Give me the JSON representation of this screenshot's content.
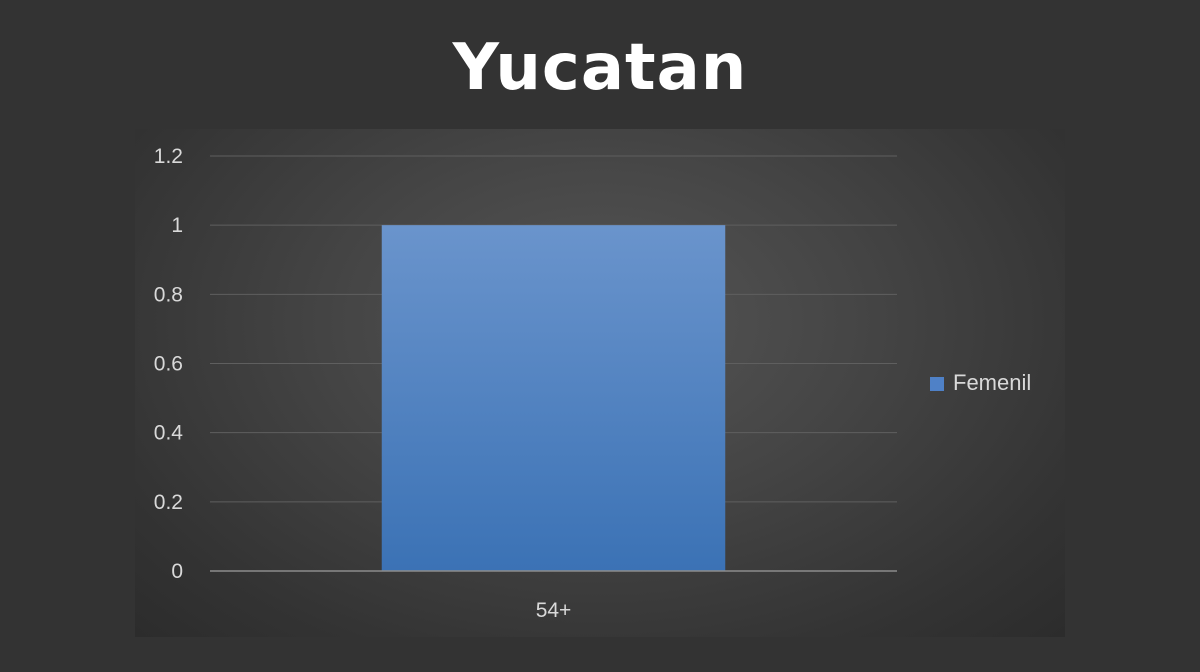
{
  "chart_data": {
    "type": "bar",
    "title": "Yucatan",
    "categories": [
      "54+"
    ],
    "series": [
      {
        "name": "Femenil",
        "values": [
          1
        ]
      }
    ],
    "ylim": [
      0,
      1.2
    ],
    "yticks": [
      "0",
      "0.2",
      "0.4",
      "0.6",
      "0.8",
      "1",
      "1.2"
    ],
    "grid": true,
    "legend_position": "right",
    "colors": {
      "bar_top": "#6a94cc",
      "bar_bottom": "#3b72b5",
      "legend_swatch": "#4f81c7",
      "gridline": "#5f5f5f",
      "axis": "#8c8c8c",
      "text": "#d9d9d9",
      "title": "#ffffff",
      "background": "#333333"
    }
  }
}
